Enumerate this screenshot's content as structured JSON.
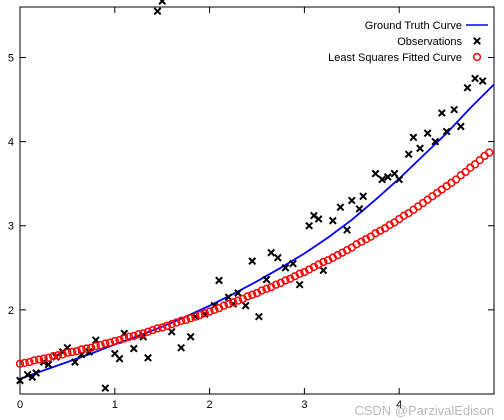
{
  "chart_data": {
    "type": "scatter",
    "xlim": [
      0,
      5
    ],
    "ylim": [
      1,
      5.6
    ],
    "x_ticks": [
      0,
      1,
      2,
      3,
      4
    ],
    "y_ticks": [
      2,
      3,
      4,
      5
    ],
    "x_tick_labels": [
      "0",
      "1",
      "2",
      "3",
      "4"
    ],
    "y_tick_labels": [
      "2",
      "3",
      "4",
      "5"
    ],
    "grid": false,
    "legend_position": "top-right",
    "series": [
      {
        "name": "Ground Truth Curve",
        "kind": "line",
        "color": "#0000ff",
        "x": [
          0.0,
          0.25,
          0.5,
          0.75,
          1.0,
          1.25,
          1.5,
          1.75,
          2.0,
          2.25,
          2.5,
          2.75,
          3.0,
          3.25,
          3.5,
          3.75,
          4.0,
          4.25,
          4.5,
          4.75,
          5.0
        ],
        "y": [
          1.18,
          1.28,
          1.38,
          1.48,
          1.59,
          1.69,
          1.8,
          1.92,
          2.05,
          2.19,
          2.34,
          2.5,
          2.67,
          2.86,
          3.07,
          3.31,
          3.56,
          3.83,
          4.1,
          4.4,
          4.68
        ]
      },
      {
        "name": "Observations",
        "kind": "points",
        "marker": "x",
        "color": "#000000",
        "points": [
          [
            0.0,
            1.16
          ],
          [
            0.08,
            1.23
          ],
          [
            0.13,
            1.2
          ],
          [
            0.17,
            1.25
          ],
          [
            0.25,
            1.38
          ],
          [
            0.3,
            1.35
          ],
          [
            0.38,
            1.44
          ],
          [
            0.45,
            1.5
          ],
          [
            0.5,
            1.55
          ],
          [
            0.58,
            1.38
          ],
          [
            0.65,
            1.47
          ],
          [
            0.73,
            1.5
          ],
          [
            0.8,
            1.64
          ],
          [
            0.9,
            1.07
          ],
          [
            1.0,
            1.48
          ],
          [
            1.05,
            1.42
          ],
          [
            1.1,
            1.72
          ],
          [
            1.2,
            1.54
          ],
          [
            1.3,
            1.68
          ],
          [
            1.35,
            1.43
          ],
          [
            1.45,
            5.55
          ],
          [
            1.5,
            5.67
          ],
          [
            1.6,
            1.74
          ],
          [
            1.7,
            1.55
          ],
          [
            1.8,
            1.68
          ],
          [
            1.85,
            1.92
          ],
          [
            1.95,
            1.95
          ],
          [
            2.05,
            2.05
          ],
          [
            2.1,
            2.35
          ],
          [
            2.2,
            2.15
          ],
          [
            2.25,
            2.07
          ],
          [
            2.3,
            2.2
          ],
          [
            2.38,
            2.05
          ],
          [
            2.45,
            2.58
          ],
          [
            2.52,
            1.92
          ],
          [
            2.6,
            2.36
          ],
          [
            2.65,
            2.68
          ],
          [
            2.72,
            2.62
          ],
          [
            2.8,
            2.5
          ],
          [
            2.88,
            2.55
          ],
          [
            2.95,
            2.3
          ],
          [
            3.05,
            3.0
          ],
          [
            3.1,
            3.12
          ],
          [
            3.15,
            3.08
          ],
          [
            3.2,
            2.47
          ],
          [
            3.3,
            3.06
          ],
          [
            3.38,
            3.22
          ],
          [
            3.45,
            2.95
          ],
          [
            3.5,
            3.3
          ],
          [
            3.58,
            3.2
          ],
          [
            3.62,
            3.35
          ],
          [
            3.75,
            3.62
          ],
          [
            3.82,
            3.55
          ],
          [
            3.88,
            3.58
          ],
          [
            3.95,
            3.62
          ],
          [
            4.0,
            3.55
          ],
          [
            4.1,
            3.85
          ],
          [
            4.15,
            4.05
          ],
          [
            4.22,
            3.92
          ],
          [
            4.3,
            4.1
          ],
          [
            4.38,
            4.0
          ],
          [
            4.45,
            4.34
          ],
          [
            4.5,
            4.12
          ],
          [
            4.58,
            4.38
          ],
          [
            4.65,
            4.18
          ],
          [
            4.72,
            4.64
          ],
          [
            4.8,
            4.75
          ],
          [
            4.88,
            4.72
          ]
        ]
      },
      {
        "name": "Least Squares Fitted Curve",
        "kind": "points",
        "marker": "o",
        "color": "#ff0000",
        "x_start": 0.0,
        "x_step": 0.05,
        "count": 100,
        "y": [
          1.36,
          1.37,
          1.38,
          1.4,
          1.41,
          1.42,
          1.43,
          1.45,
          1.46,
          1.47,
          1.49,
          1.5,
          1.51,
          1.53,
          1.54,
          1.55,
          1.57,
          1.58,
          1.6,
          1.61,
          1.63,
          1.64,
          1.66,
          1.68,
          1.69,
          1.71,
          1.72,
          1.74,
          1.76,
          1.78,
          1.79,
          1.81,
          1.83,
          1.85,
          1.87,
          1.88,
          1.9,
          1.92,
          1.94,
          1.96,
          1.98,
          2.0,
          2.02,
          2.05,
          2.07,
          2.09,
          2.11,
          2.13,
          2.16,
          2.18,
          2.2,
          2.23,
          2.25,
          2.27,
          2.3,
          2.32,
          2.35,
          2.37,
          2.4,
          2.43,
          2.45,
          2.48,
          2.51,
          2.54,
          2.57,
          2.59,
          2.62,
          2.65,
          2.68,
          2.71,
          2.74,
          2.78,
          2.81,
          2.84,
          2.87,
          2.91,
          2.94,
          2.97,
          3.01,
          3.04,
          3.08,
          3.12,
          3.15,
          3.19,
          3.23,
          3.27,
          3.31,
          3.35,
          3.39,
          3.43,
          3.47,
          3.51,
          3.55,
          3.6,
          3.64,
          3.69,
          3.73,
          3.78,
          3.83,
          3.87
        ]
      }
    ]
  },
  "watermark": "CSDN @ParzivalEdison"
}
